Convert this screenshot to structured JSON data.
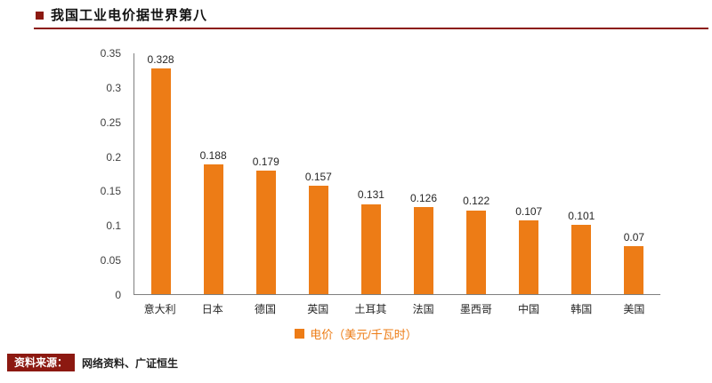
{
  "header": {
    "title": "我国工业电价据世界第八"
  },
  "chart_data": {
    "type": "bar",
    "title": "我国工业电价据世界第八",
    "categories": [
      "意大利",
      "日本",
      "德国",
      "英国",
      "土耳其",
      "法国",
      "墨西哥",
      "中国",
      "韩国",
      "美国"
    ],
    "values": [
      0.328,
      0.188,
      0.179,
      0.157,
      0.131,
      0.126,
      0.122,
      0.107,
      0.101,
      0.07
    ],
    "value_labels": [
      "0.328",
      "0.188",
      "0.179",
      "0.157",
      "0.131",
      "0.126",
      "0.122",
      "0.107",
      "0.101",
      "0.07"
    ],
    "series_name": "电价（美元/千瓦时）",
    "xlabel": "",
    "ylabel": "",
    "ylim": [
      0,
      0.35
    ],
    "yticks": [
      0,
      0.05,
      0.1,
      0.15,
      0.2,
      0.25,
      0.3,
      0.35
    ],
    "ytick_labels": [
      "0",
      "0.05",
      "0.1",
      "0.15",
      "0.2",
      "0.25",
      "0.3",
      "0.35"
    ],
    "grid": false,
    "legend_position": "bottom",
    "bar_color": "#ED7C16"
  },
  "legend": {
    "label": "电价（美元/千瓦时）"
  },
  "footer": {
    "source_label": "资料来源：",
    "source_text": "网络资料、广证恒生"
  },
  "colors": {
    "accent": "#ED7C16",
    "maroon": "#8C1911",
    "axis": "#7f7f7f"
  }
}
